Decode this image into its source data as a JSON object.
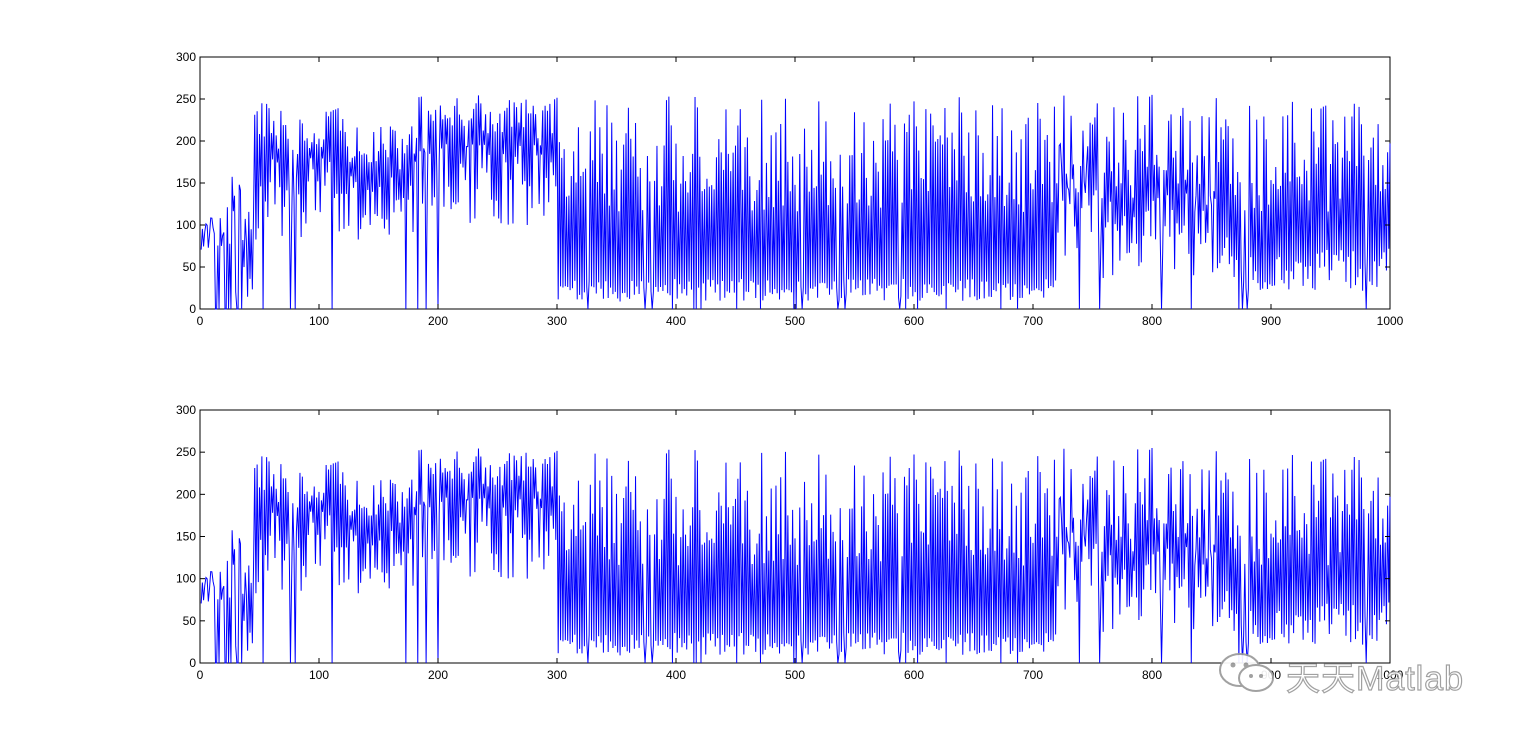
{
  "figure": {
    "background": "#ffffff",
    "line_color": "#0000ff",
    "axis_color": "#000000"
  },
  "chart_data": [
    {
      "type": "line",
      "xlim": [
        0,
        1000
      ],
      "ylim": [
        0,
        300
      ],
      "xticks": [
        0,
        100,
        200,
        300,
        400,
        500,
        600,
        700,
        800,
        900,
        1000
      ],
      "yticks": [
        0,
        50,
        100,
        150,
        200,
        250,
        300
      ],
      "grid": false,
      "series_length": 1000,
      "segments": [
        {
          "x_start": 0,
          "x_end": 45,
          "low": 0,
          "high": 175,
          "note": "start ~80, sparse spikes, drops to 0"
        },
        {
          "x_start": 45,
          "x_end": 120,
          "low": 30,
          "high": 245
        },
        {
          "x_start": 120,
          "x_end": 180,
          "low": 30,
          "high": 220
        },
        {
          "x_start": 180,
          "x_end": 300,
          "low": 60,
          "high": 255
        },
        {
          "x_start": 300,
          "x_end": 720,
          "low": 5,
          "high": 255,
          "baseline": 30
        },
        {
          "x_start": 720,
          "x_end": 750,
          "low": 0,
          "high": 255,
          "baseline": 190
        },
        {
          "x_start": 750,
          "x_end": 870,
          "low": 5,
          "high": 255,
          "baseline": 120
        },
        {
          "x_start": 870,
          "x_end": 1000,
          "low": 0,
          "high": 255,
          "baseline": 60
        }
      ]
    },
    {
      "type": "line",
      "xlim": [
        0,
        1000
      ],
      "ylim": [
        0,
        300
      ],
      "xticks": [
        0,
        100,
        200,
        300,
        400,
        500,
        600,
        700,
        800,
        900,
        1000
      ],
      "yticks": [
        0,
        50,
        100,
        150,
        200,
        250,
        300
      ],
      "grid": false,
      "series_length": 1000,
      "segments": [
        {
          "x_start": 0,
          "x_end": 45,
          "low": 0,
          "high": 175
        },
        {
          "x_start": 45,
          "x_end": 120,
          "low": 30,
          "high": 245
        },
        {
          "x_start": 120,
          "x_end": 180,
          "low": 30,
          "high": 220
        },
        {
          "x_start": 180,
          "x_end": 300,
          "low": 60,
          "high": 255
        },
        {
          "x_start": 300,
          "x_end": 720,
          "low": 5,
          "high": 255,
          "baseline": 30
        },
        {
          "x_start": 720,
          "x_end": 750,
          "low": 0,
          "high": 255,
          "baseline": 190
        },
        {
          "x_start": 750,
          "x_end": 870,
          "low": 5,
          "high": 255,
          "baseline": 120
        },
        {
          "x_start": 870,
          "x_end": 1000,
          "low": 0,
          "high": 255,
          "baseline": 60
        }
      ]
    }
  ],
  "watermark": {
    "text": "天天Matlab",
    "icon": "wechat-icon"
  }
}
